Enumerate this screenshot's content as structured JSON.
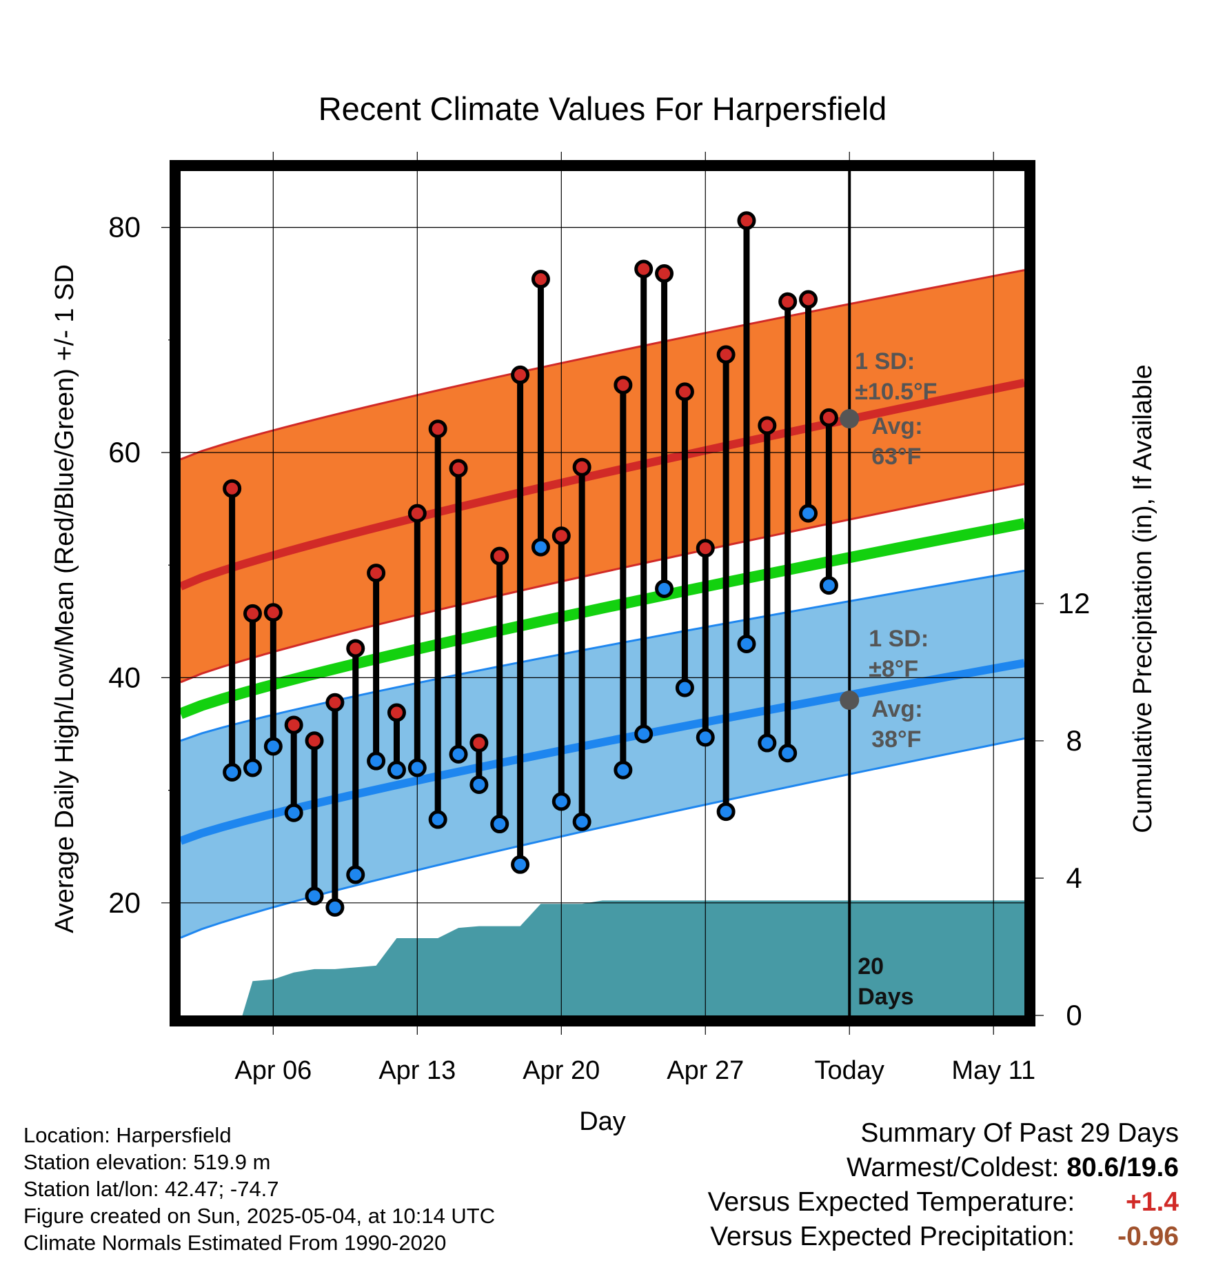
{
  "chart_data": {
    "type": "line",
    "title": "Recent Climate Values For Harpersfield",
    "xlabel": "Day",
    "ylabel_left": "Average Daily High/Low/Mean (Red/Blue/Green) +/- 1 SD",
    "ylabel_right": "Cumulative Precipitation (in), If Available",
    "x_tick_labels": [
      "Apr 06",
      "Apr 13",
      "Apr 20",
      "Apr 27",
      "Today",
      "May 11"
    ],
    "x_tick_days": [
      6,
      13,
      20,
      27,
      34,
      41
    ],
    "x_range_days": [
      1.5,
      42.5
    ],
    "today_day": 34,
    "ylim_left": [
      10,
      85
    ],
    "y_ticks_left": [
      20,
      40,
      60,
      80
    ],
    "y_minor_ticks_left": [
      30,
      50,
      70
    ],
    "ylim_right": [
      0,
      24.6
    ],
    "y_ticks_right": [
      0,
      4,
      8,
      12
    ],
    "grid": true,
    "days": [
      4,
      5,
      6,
      7,
      8,
      9,
      10,
      11,
      12,
      13,
      14,
      15,
      16,
      17,
      18,
      19,
      20,
      21,
      22,
      23,
      24,
      25,
      26,
      27,
      28,
      29,
      30,
      31,
      32,
      33
    ],
    "highs": [
      56.8,
      45.7,
      45.8,
      35.8,
      34.4,
      37.8,
      42.6,
      49.3,
      36.9,
      54.6,
      62.1,
      58.6,
      34.2,
      50.8,
      66.9,
      75.4,
      52.6,
      58.7,
      null,
      66.0,
      76.3,
      75.9,
      65.4,
      51.5,
      68.7,
      80.6,
      62.4,
      73.4,
      73.6,
      63.1
    ],
    "lows": [
      31.6,
      32.0,
      33.9,
      28.0,
      20.6,
      19.6,
      22.5,
      32.6,
      31.8,
      32.0,
      27.4,
      33.2,
      30.5,
      27.0,
      23.4,
      51.6,
      29.0,
      27.2,
      null,
      31.8,
      35.0,
      47.9,
      39.1,
      34.7,
      28.1,
      43.0,
      34.2,
      33.3,
      54.6,
      48.2
    ],
    "normals": {
      "high_avg": {
        "start": 48.1,
        "end": 66.2
      },
      "low_avg": {
        "start": 25.5,
        "end": 41.3
      },
      "mean_avg": {
        "start": 36.8,
        "end": 53.7
      },
      "high_sd_band": {
        "start": [
          39.6,
          59.4
        ],
        "end": [
          57.2,
          76.2
        ]
      },
      "low_sd_band": {
        "start": [
          16.9,
          34.4
        ],
        "end": [
          34.6,
          49.5
        ]
      }
    },
    "precip_cumulative": {
      "days": [
        2.5,
        3.5,
        4.5,
        5,
        6,
        7,
        8,
        9,
        10,
        11,
        12,
        13,
        14,
        15,
        16,
        17,
        18,
        19,
        20,
        21,
        22,
        23,
        34,
        42.5
      ],
      "values": [
        0,
        0,
        0,
        1.0,
        1.05,
        1.25,
        1.35,
        1.35,
        1.4,
        1.45,
        2.25,
        2.25,
        2.25,
        2.55,
        2.6,
        2.6,
        2.6,
        3.25,
        3.25,
        3.25,
        3.35,
        3.35,
        3.35,
        3.35
      ]
    },
    "annotations": {
      "high_sd_label": [
        "1 SD:",
        "±10.5°F"
      ],
      "high_avg_label": [
        "Avg:",
        "63°F"
      ],
      "low_sd_label": [
        "1 SD:",
        "±8°F"
      ],
      "low_avg_label": [
        "Avg:",
        "38°F"
      ],
      "days_label": [
        "20",
        "Days"
      ],
      "today_high_avg": 63,
      "today_low_avg": 38
    },
    "colors": {
      "high_band": "#f47a2e",
      "high_line": "#d12a27",
      "low_band": "#82c0e8",
      "low_line": "#1e86ef",
      "mean_line": "#13d10f",
      "precip": "#479aa5",
      "high_dot": "#d12a27",
      "low_dot": "#1e86ef",
      "annotation": "#555555"
    }
  },
  "info": {
    "location": "Location: Harpersfield",
    "elevation": "Station elevation: 519.9 m",
    "latlon": "Station lat/lon: 42.47; -74.7",
    "created": "Figure created on Sun, 2025-05-04, at 10:14 UTC",
    "normals": "Climate Normals Estimated From 1990-2020"
  },
  "summary": {
    "title": "Summary Of Past 29 Days",
    "warm_cold_label": "Warmest/Coldest:",
    "warm_cold_value": "80.6/19.6",
    "temp_label": "Versus Expected Temperature:",
    "temp_value": "+1.4",
    "temp_color": "#d12a27",
    "precip_label": "Versus Expected Precipitation:",
    "precip_value": "-0.96",
    "precip_color": "#a0522d"
  }
}
